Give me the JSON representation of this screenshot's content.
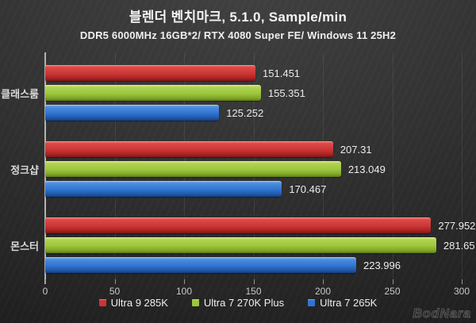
{
  "header": {
    "title": "블렌더 벤치마크, 5.1.0, Sample/min",
    "subtitle": "DDR5 6000MHz 16GB*2/ RTX 4080 Super FE/ Windows 11 25H2"
  },
  "chart_data": {
    "type": "bar",
    "orientation": "horizontal",
    "title": "블렌더 벤치마크, 5.1.0, Sample/min",
    "subtitle": "DDR5 6000MHz 16GB*2/ RTX 4080 Super FE/ Windows 11 25H2",
    "categories": [
      "클래스룸",
      "정크샵",
      "몬스터"
    ],
    "series": [
      {
        "name": "Ultra 9 285K",
        "color": "#cb3535",
        "values": [
          151.451,
          207.31,
          277.952
        ],
        "labels": [
          "151.451",
          "207.31",
          "277.952"
        ]
      },
      {
        "name": "Ultra 7 270K Plus",
        "color": "#9cc63c",
        "values": [
          155.351,
          213.049,
          281.65
        ],
        "labels": [
          "155.351",
          "213.049",
          "281.65"
        ]
      },
      {
        "name": "Ultra 7 265K",
        "color": "#2f74d0",
        "values": [
          125.252,
          170.467,
          223.996
        ],
        "labels": [
          "125.252",
          "170.467",
          "223.996"
        ]
      }
    ],
    "xlim": [
      0,
      300
    ],
    "x_ticks": [
      "0",
      "50",
      "100",
      "150",
      "200",
      "250",
      "300"
    ],
    "grid": "vertical",
    "legend_position": "bottom",
    "value_labels": true
  },
  "watermark": {
    "text": "BodNara"
  }
}
